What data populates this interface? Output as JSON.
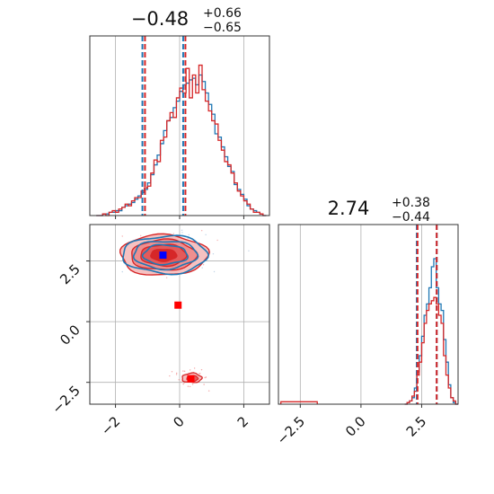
{
  "chart_data": {
    "type": "corner",
    "colors": {
      "blue": "#1f77b4",
      "red": "#d62728",
      "red_light": "#f08080",
      "marker_blue": "#0000ff",
      "marker_red": "#ff0000"
    },
    "param1": {
      "title_main": "−0.48",
      "title_plus": "+0.66",
      "title_minus": "−0.65",
      "range": [
        -2.8,
        2.8
      ],
      "ticks": [
        -2,
        0,
        2
      ],
      "tick_labels": [
        "−2",
        "0",
        "2"
      ],
      "quantiles_blue": [
        -1.16,
        0.11
      ],
      "quantiles_red": [
        -1.08,
        0.18
      ],
      "hist_bin_width": 0.1,
      "hist_start": -2.6,
      "hist_blue": [
        0.0,
        0.0,
        0.01,
        0.01,
        0.02,
        0.02,
        0.03,
        0.03,
        0.05,
        0.06,
        0.07,
        0.08,
        0.1,
        0.12,
        0.14,
        0.16,
        0.2,
        0.25,
        0.31,
        0.37,
        0.44,
        0.52,
        0.58,
        0.6,
        0.66,
        0.7,
        0.76,
        0.8,
        0.81,
        0.83,
        0.84,
        0.8,
        0.86,
        0.82,
        0.75,
        0.68,
        0.62,
        0.5,
        0.48,
        0.42,
        0.36,
        0.3,
        0.27,
        0.19,
        0.16,
        0.13,
        0.1,
        0.06,
        0.04,
        0.03,
        0.02,
        0.01,
        0.0
      ],
      "hist_red": [
        0.0,
        0.0,
        0.01,
        0.0,
        0.02,
        0.03,
        0.02,
        0.04,
        0.05,
        0.07,
        0.06,
        0.09,
        0.11,
        0.11,
        0.15,
        0.17,
        0.18,
        0.26,
        0.34,
        0.33,
        0.46,
        0.48,
        0.58,
        0.63,
        0.6,
        0.72,
        0.78,
        0.75,
        0.9,
        0.72,
        0.86,
        0.75,
        0.92,
        0.77,
        0.7,
        0.64,
        0.58,
        0.56,
        0.46,
        0.4,
        0.33,
        0.31,
        0.26,
        0.2,
        0.15,
        0.12,
        0.09,
        0.07,
        0.04,
        0.02,
        0.02,
        0.01,
        0.0
      ]
    },
    "param2": {
      "title_main": "2.74",
      "title_plus": "+0.38",
      "title_minus": "−0.44",
      "range": [
        -3.4,
        4.0
      ],
      "ticks": [
        -2.5,
        0.0,
        2.5
      ],
      "tick_labels": [
        "−2.5",
        "0.0",
        "2.5"
      ],
      "quantiles_blue": [
        2.3,
        3.12
      ],
      "quantiles_red": [
        2.33,
        3.12
      ],
      "hist_bin_width": 0.1,
      "hist_start": 1.8,
      "hist_blue": [
        0.0,
        0.01,
        0.02,
        0.04,
        0.1,
        0.2,
        0.3,
        0.42,
        0.55,
        0.62,
        0.72,
        0.85,
        0.9,
        0.72,
        0.62,
        0.58,
        0.4,
        0.26,
        0.12,
        0.04,
        0.01,
        0.0
      ],
      "hist_red": [
        0.0,
        0.01,
        0.02,
        0.05,
        0.08,
        0.18,
        0.26,
        0.38,
        0.5,
        0.58,
        0.62,
        0.64,
        0.66,
        0.62,
        0.55,
        0.5,
        0.3,
        0.18,
        0.1,
        0.04,
        0.02,
        0.0
      ],
      "red_tail": {
        "x": [
          -3.3,
          -1.8
        ],
        "level": 0.015
      }
    },
    "scatter_2d": {
      "blue_marker": {
        "x": -0.52,
        "y": 2.74
      },
      "red_markers": [
        {
          "x": -0.05,
          "y": 0.68
        },
        {
          "x": 0.35,
          "y": -2.35
        }
      ],
      "main_cluster": {
        "cx": -0.5,
        "cy": 2.74,
        "sx": 0.62,
        "sy": 0.38
      },
      "minor_cluster": {
        "cx": 0.38,
        "cy": -2.32,
        "sx": 0.22,
        "sy": 0.16
      }
    }
  }
}
